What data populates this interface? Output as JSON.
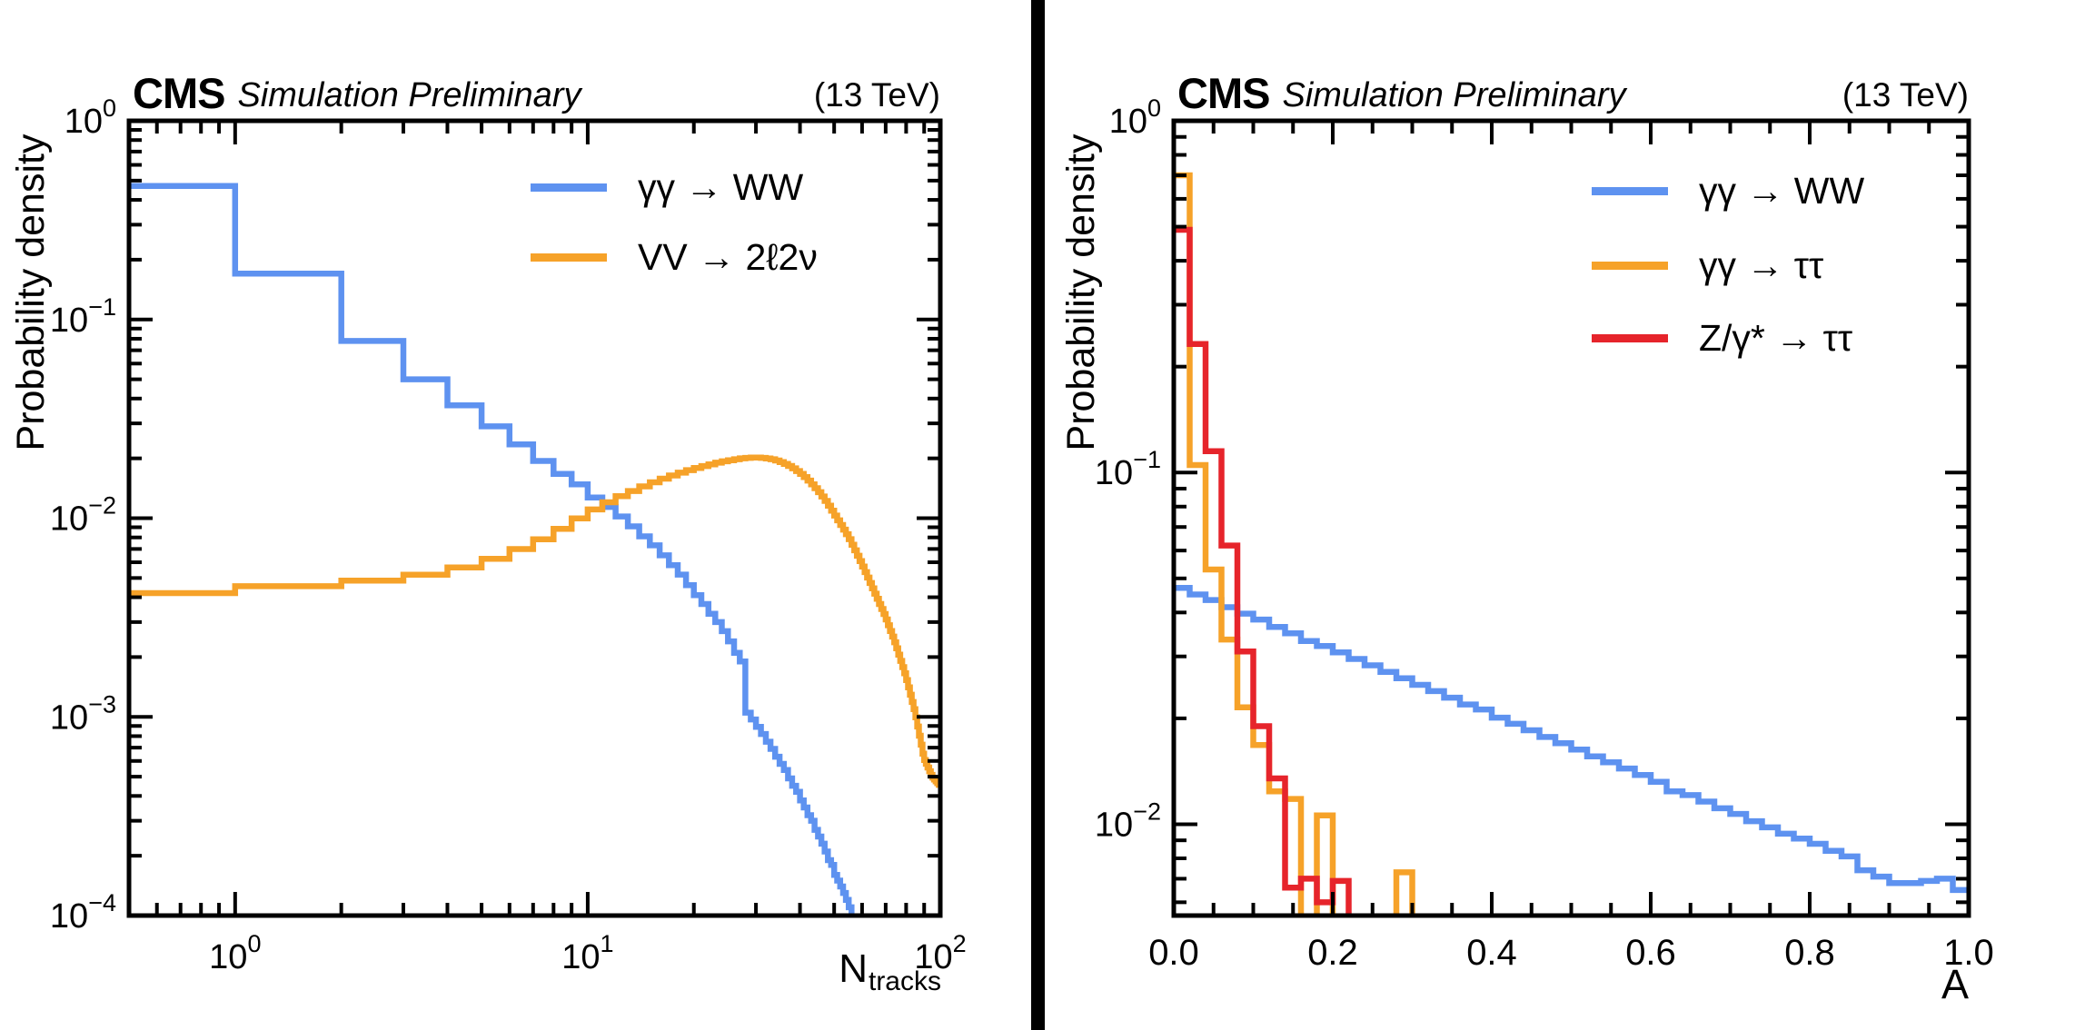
{
  "divider_color": "#000000",
  "chart_data": [
    {
      "type": "line",
      "id": "ntracks-panel",
      "header": {
        "experiment": "CMS",
        "label": "Simulation Preliminary",
        "energy": "(13 TeV)"
      },
      "y_axis": {
        "title": "Probability density",
        "scale": "log",
        "min": 0.0001,
        "max": 1.0,
        "decades": [
          0,
          -1,
          -2,
          -3,
          -4
        ]
      },
      "x_axis": {
        "title_main": "N",
        "title_sub": "tracks",
        "scale": "log",
        "min": 0.5,
        "max": 100,
        "decades": [
          0,
          1,
          2
        ]
      },
      "legend_position": "top-right-inside",
      "grid": false,
      "legend": [
        {
          "label": "γγ → WW",
          "color": "#5e92f0"
        },
        {
          "label": "VV → 2ℓ2ν",
          "color": "#f6a229"
        }
      ],
      "series": [
        {
          "name": "gamma-gamma-to-ww",
          "color": "#5e92f0",
          "type": "hist",
          "end_drop": true,
          "edges": [
            0.5,
            1,
            2,
            3,
            4,
            5,
            6,
            7,
            8,
            9,
            10,
            11,
            12,
            13,
            14,
            15,
            16,
            17,
            18,
            19,
            20,
            21,
            22,
            23,
            24,
            25,
            26,
            27,
            28,
            29,
            30,
            31,
            32,
            33,
            34,
            35,
            36,
            37,
            38,
            39,
            40,
            41,
            42,
            43,
            44,
            45,
            46,
            47,
            48,
            49,
            50,
            51,
            52,
            53,
            54,
            55,
            56
          ],
          "values": [
            0.47,
            0.17,
            0.078,
            0.05,
            0.037,
            0.029,
            0.0235,
            0.0194,
            0.0167,
            0.0148,
            0.0127,
            0.0114,
            0.0102,
            0.0091,
            0.0081,
            0.0073,
            0.0065,
            0.0058,
            0.0052,
            0.0046,
            0.0041,
            0.0037,
            0.0033,
            0.003,
            0.0027,
            0.0024,
            0.0021,
            0.0019,
            0.00105,
            0.00097,
            0.00089,
            0.00082,
            0.00075,
            0.00069,
            0.00063,
            0.00058,
            0.00054,
            0.00049,
            0.00045,
            0.00042,
            0.00038,
            0.00035,
            0.00032,
            0.0003,
            0.00027,
            0.00025,
            0.00023,
            0.00021,
            0.00019,
            0.00018,
            0.00016,
            0.00015,
            0.00014,
            0.00013,
            0.00012,
            0.00011
          ]
        },
        {
          "name": "vv-to-2l2nu",
          "color": "#f6a229",
          "type": "anchors",
          "end_drop": false,
          "x": [
            0.5,
            1,
            2,
            3,
            4,
            5,
            6,
            7,
            8,
            9,
            10,
            12,
            14,
            16,
            18,
            20,
            22,
            24,
            26,
            28,
            30,
            32,
            34,
            36,
            38,
            40,
            42,
            44,
            46,
            48,
            50,
            55,
            60,
            65,
            70,
            75,
            80,
            85,
            90,
            95,
            100
          ],
          "y": [
            0.004,
            0.0044,
            0.0047,
            0.005,
            0.0054,
            0.0059,
            0.0066,
            0.0074,
            0.0083,
            0.0094,
            0.0106,
            0.0125,
            0.0141,
            0.0155,
            0.0167,
            0.0177,
            0.0185,
            0.0192,
            0.0197,
            0.0201,
            0.0202,
            0.0201,
            0.0197,
            0.019,
            0.0181,
            0.017,
            0.0158,
            0.0145,
            0.0132,
            0.0119,
            0.0106,
            0.0081,
            0.0059,
            0.0043,
            0.0032,
            0.0023,
            0.0016,
            0.00105,
            0.00062,
            0.0005,
            0.00045
          ]
        }
      ]
    },
    {
      "type": "line",
      "id": "acoplanarity-panel",
      "header": {
        "experiment": "CMS",
        "label": "Simulation Preliminary",
        "energy": "(13 TeV)"
      },
      "y_axis": {
        "title": "Probability density",
        "scale": "log",
        "min": 0.0055,
        "max": 1.0,
        "decades": [
          0,
          -1,
          -2
        ]
      },
      "x_axis": {
        "title": "A",
        "scale": "linear",
        "min": 0,
        "max": 1,
        "majors": [
          0,
          0.2,
          0.4,
          0.6,
          0.8,
          1.0
        ],
        "minor_step": 0.05
      },
      "legend_position": "top-right-inside",
      "grid": false,
      "legend": [
        {
          "label": "γγ → WW",
          "color": "#5e92f0"
        },
        {
          "label": "γγ → ττ",
          "color": "#f6a229"
        },
        {
          "label": "Z/γ* → ττ",
          "color": "#e6242b"
        }
      ],
      "series": [
        {
          "name": "gamma-gamma-to-ww",
          "color": "#5e92f0",
          "type": "hist_uniform",
          "start": 0,
          "bin_width": 0.02,
          "end_drop": false,
          "values": [
            0.047,
            0.045,
            0.0434,
            0.0414,
            0.0397,
            0.0382,
            0.0364,
            0.0349,
            0.0332,
            0.0321,
            0.0308,
            0.0295,
            0.0283,
            0.0271,
            0.026,
            0.0249,
            0.0239,
            0.0229,
            0.0219,
            0.0212,
            0.0201,
            0.0193,
            0.0185,
            0.0177,
            0.017,
            0.0163,
            0.0156,
            0.015,
            0.0144,
            0.0138,
            0.0132,
            0.0124,
            0.0121,
            0.0116,
            0.0111,
            0.0107,
            0.0102,
            0.0098,
            0.0094,
            0.0091,
            0.0088,
            0.0084,
            0.0081,
            0.0074,
            0.0071,
            0.0068,
            0.0068,
            0.0069,
            0.007,
            0.0065
          ]
        },
        {
          "name": "gamma-gamma-to-tautau",
          "color": "#f6a229",
          "type": "hist_uniform",
          "start": 0,
          "bin_width": 0.02,
          "end_drop": false,
          "values": [
            0.7,
            0.105,
            0.053,
            0.0335,
            0.0215,
            0.0168,
            0.0124,
            0.0118,
            0,
            0.0106,
            0,
            0,
            0,
            0,
            0.0073,
            0,
            0,
            0,
            0,
            0,
            0,
            0,
            0,
            0,
            0,
            0,
            0,
            0,
            0,
            0,
            0,
            0,
            0,
            0,
            0,
            0,
            0,
            0,
            0,
            0,
            0,
            0,
            0,
            0,
            0,
            0,
            0,
            0,
            0,
            0
          ]
        },
        {
          "name": "z-gamma-star-to-tautau",
          "color": "#e6242b",
          "type": "hist_uniform",
          "start": 0,
          "bin_width": 0.02,
          "end_drop": false,
          "values": [
            0.49,
            0.232,
            0.115,
            0.062,
            0.031,
            0.019,
            0.0135,
            0.0066,
            0.007,
            0.006,
            0.0069,
            0,
            0,
            0,
            0,
            0,
            0,
            0,
            0,
            0,
            0,
            0,
            0,
            0,
            0,
            0,
            0,
            0,
            0,
            0,
            0,
            0,
            0,
            0,
            0,
            0,
            0,
            0,
            0,
            0,
            0,
            0,
            0,
            0,
            0,
            0,
            0,
            0,
            0,
            0
          ]
        }
      ]
    }
  ]
}
